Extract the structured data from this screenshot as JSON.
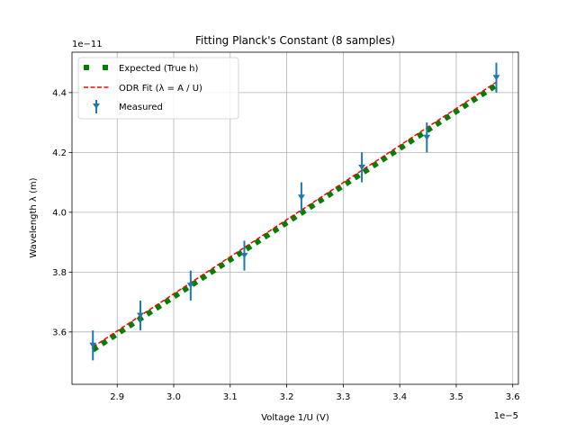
{
  "chart_data": {
    "type": "scatter",
    "title": "Fitting Planck's Constant (8 samples)",
    "xlabel": "Voltage 1/U (V)",
    "ylabel": "Wavelength λ (m)",
    "x_offset_text": "1e−5",
    "y_offset_text": "1e−11",
    "x_scale": 1e-05,
    "y_scale": 1e-11,
    "xlim": [
      2.82,
      3.61
    ],
    "ylim": [
      3.425,
      4.535
    ],
    "x_ticks": [
      2.9,
      3.0,
      3.1,
      3.2,
      3.3,
      3.4,
      3.5,
      3.6
    ],
    "x_tick_labels": [
      "2.9",
      "3.0",
      "3.1",
      "3.2",
      "3.3",
      "3.4",
      "3.5",
      "3.6"
    ],
    "y_ticks": [
      3.6,
      3.8,
      4.0,
      4.2,
      4.4
    ],
    "y_tick_labels": [
      "3.6",
      "3.8",
      "4.0",
      "4.2",
      "4.4"
    ],
    "grid": true,
    "legend_position": "upper-left",
    "legend": [
      "Expected (True h)",
      "ODR Fit (λ = A / U)",
      "Measured"
    ],
    "series": [
      {
        "name": "Expected (True h)",
        "kind": "line",
        "style": "dotted-thick",
        "color": "#008000",
        "x": [
          2.857,
          3.571
        ],
        "y": [
          3.54,
          4.425
        ]
      },
      {
        "name": "ODR Fit (λ = A / U)",
        "kind": "line",
        "style": "dashed",
        "color": "#ff0000",
        "x": [
          2.857,
          3.571
        ],
        "y": [
          3.55,
          4.435
        ]
      },
      {
        "name": "Measured",
        "kind": "errorbar",
        "color": "#1f77b4",
        "x": [
          2.857,
          2.941,
          3.03,
          3.125,
          3.226,
          3.333,
          3.448,
          3.571
        ],
        "y": [
          3.555,
          3.655,
          3.755,
          3.855,
          4.05,
          4.15,
          4.25,
          4.45
        ],
        "yerr": [
          0.05,
          0.05,
          0.05,
          0.05,
          0.05,
          0.05,
          0.05,
          0.05
        ]
      }
    ]
  }
}
